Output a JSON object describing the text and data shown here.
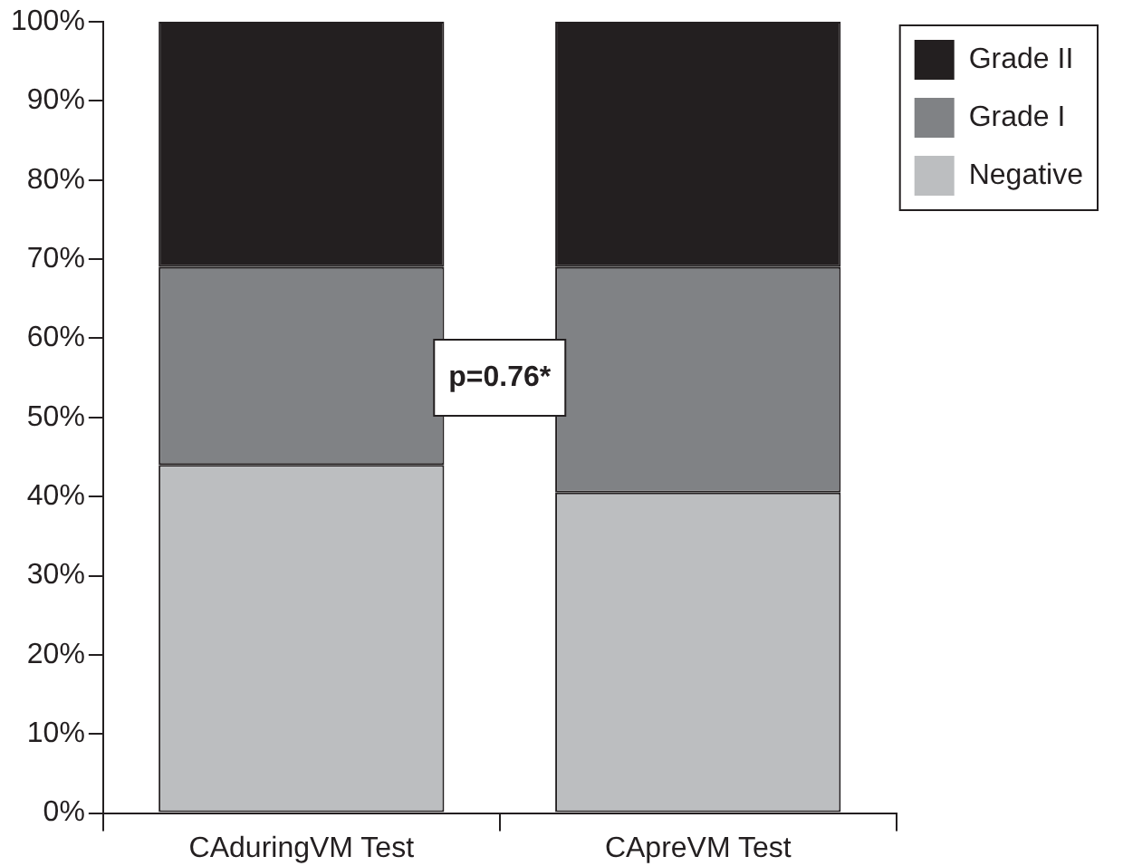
{
  "chart_data": {
    "type": "bar",
    "stacked": true,
    "categories": [
      "CAduringVM Test",
      "CApreVM Test"
    ],
    "series": [
      {
        "name": "Negative",
        "color": "#bcbec0",
        "values": [
          44,
          40.5
        ]
      },
      {
        "name": "Grade I",
        "color": "#808285",
        "values": [
          25,
          28.5
        ]
      },
      {
        "name": "Grade II",
        "color": "#231f20",
        "values": [
          31,
          31
        ]
      }
    ],
    "ylim": [
      0,
      100
    ],
    "yticks": [
      {
        "value": 0,
        "label": "0%"
      },
      {
        "value": 10,
        "label": "10%"
      },
      {
        "value": 20,
        "label": "20%"
      },
      {
        "value": 30,
        "label": "30%"
      },
      {
        "value": 40,
        "label": "40%"
      },
      {
        "value": 50,
        "label": "50%"
      },
      {
        "value": 60,
        "label": "60%"
      },
      {
        "value": 70,
        "label": "70%"
      },
      {
        "value": 80,
        "label": "80%"
      },
      {
        "value": 90,
        "label": "90%"
      },
      {
        "value": 100,
        "label": "100%"
      }
    ],
    "grid": false,
    "legend": "top right",
    "annotations": [
      "p=0.76*"
    ]
  }
}
